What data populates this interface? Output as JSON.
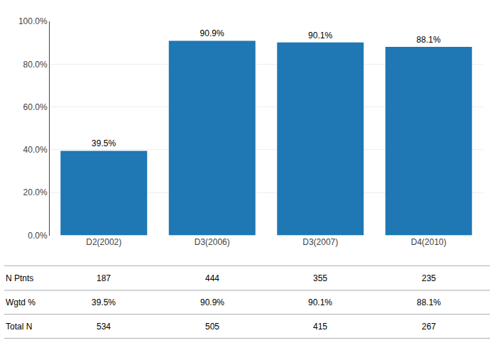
{
  "chart_data": {
    "type": "bar",
    "categories": [
      "D2(2002)",
      "D3(2006)",
      "D3(2007)",
      "D4(2010)"
    ],
    "values": [
      39.5,
      90.9,
      90.1,
      88.1
    ],
    "value_labels": [
      "39.5%",
      "90.9%",
      "90.1%",
      "88.1%"
    ],
    "data_labels": true,
    "ylim": [
      0,
      100
    ],
    "yticks": [
      {
        "value": 0,
        "label": "0.0%"
      },
      {
        "value": 20,
        "label": "20.0%"
      },
      {
        "value": 40,
        "label": "40.0%"
      },
      {
        "value": 60,
        "label": "60.0%"
      },
      {
        "value": 80,
        "label": "80.0%"
      },
      {
        "value": 100,
        "label": "100.0%"
      }
    ],
    "grid": true,
    "table": [
      {
        "label": "N Ptnts",
        "values": [
          187,
          444,
          355,
          235
        ]
      },
      {
        "label": "Wgtd %",
        "values": [
          39.5,
          90.9,
          90.1,
          88.1
        ],
        "value_labels": [
          "39.5%",
          "90.9%",
          "90.1%",
          "88.1%"
        ]
      },
      {
        "label": "Total N",
        "values": [
          534,
          505,
          415,
          267
        ]
      }
    ]
  }
}
